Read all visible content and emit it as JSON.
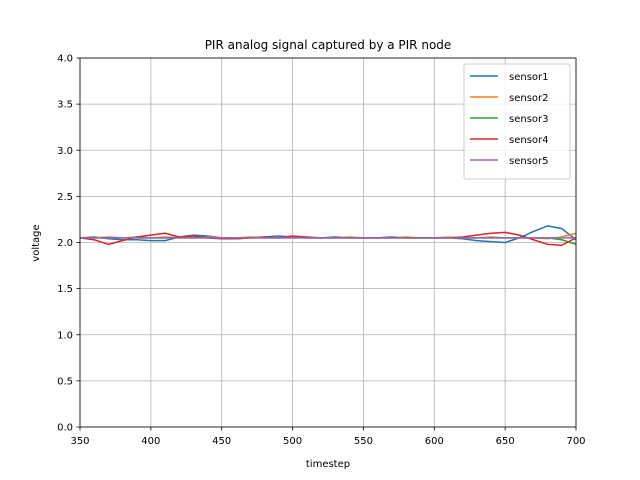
{
  "chart_data": {
    "type": "line",
    "title": "PIR analog signal captured by a PIR node",
    "xlabel": "timestep",
    "ylabel": "voltage",
    "xlim": [
      350,
      700
    ],
    "ylim": [
      0.0,
      4.0
    ],
    "xticks": [
      "350",
      "400",
      "450",
      "500",
      "550",
      "600",
      "650",
      "700"
    ],
    "yticks": [
      "0.0",
      "0.5",
      "1.0",
      "1.5",
      "2.0",
      "2.5",
      "3.0",
      "3.5",
      "4.0"
    ],
    "grid": true,
    "legend_position": "top-right",
    "x": [
      350,
      360,
      370,
      380,
      390,
      400,
      410,
      420,
      430,
      440,
      450,
      460,
      470,
      480,
      490,
      500,
      510,
      520,
      530,
      540,
      550,
      560,
      570,
      580,
      590,
      600,
      610,
      620,
      630,
      640,
      650,
      660,
      670,
      680,
      690,
      700
    ],
    "series": [
      {
        "name": "sensor1",
        "color": "#1f77b4",
        "values": [
          2.05,
          2.06,
          2.04,
          2.03,
          2.03,
          2.02,
          2.02,
          2.06,
          2.08,
          2.07,
          2.05,
          2.04,
          2.05,
          2.06,
          2.07,
          2.06,
          2.05,
          2.05,
          2.06,
          2.05,
          2.05,
          2.05,
          2.06,
          2.05,
          2.05,
          2.05,
          2.05,
          2.04,
          2.02,
          2.01,
          2.0,
          2.05,
          2.12,
          2.18,
          2.15,
          2.03
        ]
      },
      {
        "name": "sensor2",
        "color": "#ff7f0e",
        "values": [
          2.05,
          2.05,
          2.06,
          2.05,
          2.06,
          2.05,
          2.06,
          2.05,
          2.05,
          2.06,
          2.05,
          2.05,
          2.06,
          2.05,
          2.05,
          2.06,
          2.05,
          2.05,
          2.05,
          2.06,
          2.05,
          2.05,
          2.05,
          2.06,
          2.05,
          2.05,
          2.06,
          2.05,
          2.05,
          2.06,
          2.05,
          2.05,
          2.05,
          2.04,
          2.06,
          2.1
        ]
      },
      {
        "name": "sensor3",
        "color": "#2ca02c",
        "values": [
          2.05,
          2.05,
          2.05,
          2.05,
          2.05,
          2.05,
          2.05,
          2.05,
          2.05,
          2.05,
          2.05,
          2.05,
          2.05,
          2.05,
          2.05,
          2.05,
          2.05,
          2.05,
          2.05,
          2.05,
          2.05,
          2.05,
          2.05,
          2.05,
          2.05,
          2.05,
          2.05,
          2.05,
          2.05,
          2.05,
          2.05,
          2.05,
          2.05,
          2.05,
          2.03,
          1.98
        ]
      },
      {
        "name": "sensor4",
        "color": "#d62728",
        "values": [
          2.05,
          2.03,
          1.98,
          2.02,
          2.06,
          2.08,
          2.1,
          2.06,
          2.07,
          2.05,
          2.04,
          2.04,
          2.05,
          2.06,
          2.05,
          2.07,
          2.06,
          2.05,
          2.05,
          2.05,
          2.05,
          2.05,
          2.05,
          2.05,
          2.05,
          2.05,
          2.05,
          2.06,
          2.08,
          2.1,
          2.11,
          2.08,
          2.03,
          1.98,
          1.97,
          2.05
        ]
      },
      {
        "name": "sensor5",
        "color": "#9467bd",
        "values": [
          2.05,
          2.05,
          2.05,
          2.05,
          2.05,
          2.05,
          2.05,
          2.05,
          2.05,
          2.05,
          2.05,
          2.05,
          2.05,
          2.05,
          2.05,
          2.05,
          2.05,
          2.05,
          2.05,
          2.05,
          2.05,
          2.05,
          2.05,
          2.05,
          2.05,
          2.05,
          2.05,
          2.05,
          2.05,
          2.05,
          2.05,
          2.05,
          2.05,
          2.05,
          2.05,
          2.05
        ]
      }
    ]
  }
}
